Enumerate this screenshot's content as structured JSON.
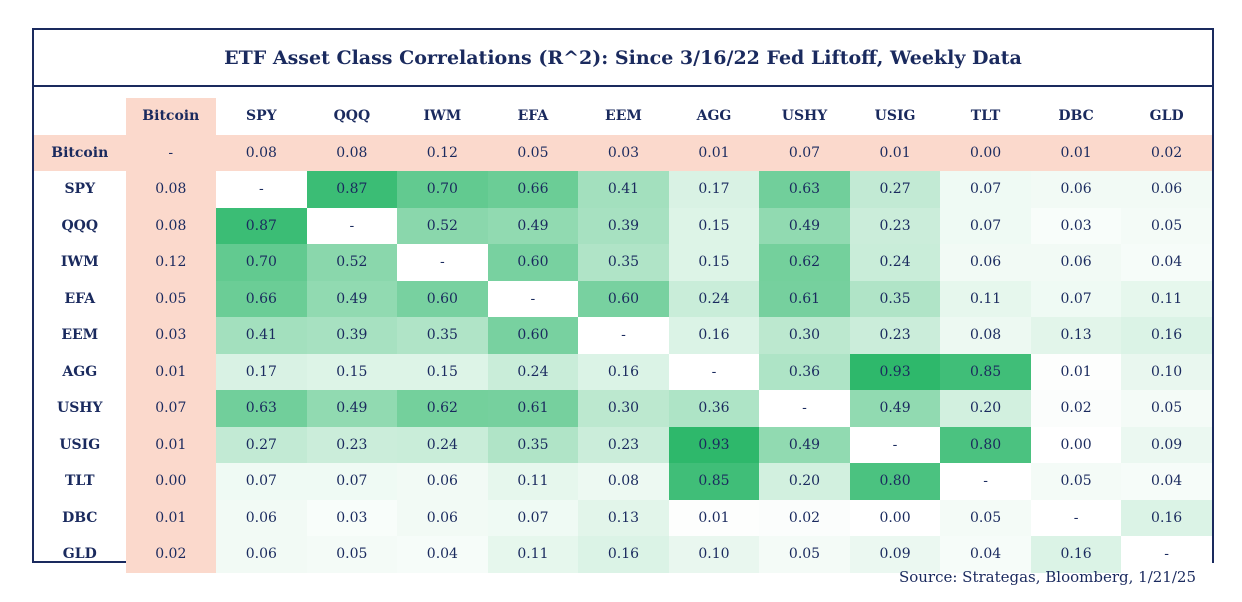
{
  "chart_data": {
    "type": "heatmap",
    "title": "ETF Asset Class Correlations (R^2): Since 3/16/22 Fed Liftoff, Weekly Data",
    "columns": [
      "Bitcoin",
      "SPY",
      "QQQ",
      "IWM",
      "EFA",
      "EEM",
      "AGG",
      "USHY",
      "USIG",
      "TLT",
      "DBC",
      "GLD"
    ],
    "rows": [
      "Bitcoin",
      "SPY",
      "QQQ",
      "IWM",
      "EFA",
      "EEM",
      "AGG",
      "USHY",
      "USIG",
      "TLT",
      "DBC",
      "GLD"
    ],
    "values": [
      [
        "-",
        "0.08",
        "0.08",
        "0.12",
        "0.05",
        "0.03",
        "0.01",
        "0.07",
        "0.01",
        "0.00",
        "0.01",
        "0.02"
      ],
      [
        "0.08",
        "-",
        "0.87",
        "0.70",
        "0.66",
        "0.41",
        "0.17",
        "0.63",
        "0.27",
        "0.07",
        "0.06",
        "0.06"
      ],
      [
        "0.08",
        "0.87",
        "-",
        "0.52",
        "0.49",
        "0.39",
        "0.15",
        "0.49",
        "0.23",
        "0.07",
        "0.03",
        "0.05"
      ],
      [
        "0.12",
        "0.70",
        "0.52",
        "-",
        "0.60",
        "0.35",
        "0.15",
        "0.62",
        "0.24",
        "0.06",
        "0.06",
        "0.04"
      ],
      [
        "0.05",
        "0.66",
        "0.49",
        "0.60",
        "-",
        "0.60",
        "0.24",
        "0.61",
        "0.35",
        "0.11",
        "0.07",
        "0.11"
      ],
      [
        "0.03",
        "0.41",
        "0.39",
        "0.35",
        "0.60",
        "-",
        "0.16",
        "0.30",
        "0.23",
        "0.08",
        "0.13",
        "0.16"
      ],
      [
        "0.01",
        "0.17",
        "0.15",
        "0.15",
        "0.24",
        "0.16",
        "-",
        "0.36",
        "0.93",
        "0.85",
        "0.01",
        "0.10"
      ],
      [
        "0.07",
        "0.63",
        "0.49",
        "0.62",
        "0.61",
        "0.30",
        "0.36",
        "-",
        "0.49",
        "0.20",
        "0.02",
        "0.05"
      ],
      [
        "0.01",
        "0.27",
        "0.23",
        "0.24",
        "0.35",
        "0.23",
        "0.93",
        "0.49",
        "-",
        "0.80",
        "0.00",
        "0.09"
      ],
      [
        "0.00",
        "0.07",
        "0.07",
        "0.06",
        "0.11",
        "0.08",
        "0.85",
        "0.20",
        "0.80",
        "-",
        "0.05",
        "0.04"
      ],
      [
        "0.01",
        "0.06",
        "0.03",
        "0.06",
        "0.07",
        "0.13",
        "0.01",
        "0.02",
        "0.00",
        "0.05",
        "-",
        "0.16"
      ],
      [
        "0.02",
        "0.06",
        "0.05",
        "0.04",
        "0.11",
        "0.16",
        "0.10",
        "0.05",
        "0.09",
        "0.04",
        "0.16",
        "-"
      ]
    ],
    "highlight": "Bitcoin",
    "highlight_color": "#fbd9cc",
    "scale_low_color": "#ffffff",
    "scale_high_color": "#2eb86b",
    "scale_range": [
      0,
      0.93
    ]
  },
  "source": "Source: Strategas, Bloomberg, 1/21/25"
}
